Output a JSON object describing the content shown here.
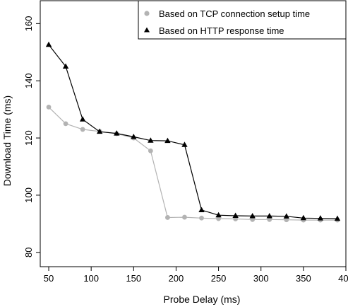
{
  "chart_data": {
    "type": "line",
    "title": "",
    "xlabel": "Probe Delay (ms)",
    "ylabel": "Download Time (ms)",
    "xlim": [
      40,
      400
    ],
    "ylim": [
      75,
      168
    ],
    "xticks": [
      "50",
      "100",
      "150",
      "200",
      "250",
      "300",
      "350",
      "400"
    ],
    "yticks": [
      "80",
      "100",
      "120",
      "140",
      "160"
    ],
    "legend_position": "top-right",
    "grid": false,
    "x": [
      50,
      70,
      90,
      110,
      130,
      150,
      170,
      190,
      210,
      230,
      250,
      270,
      290,
      310,
      330,
      350,
      370,
      390
    ],
    "series": [
      {
        "name": "Based on TCP connection setup time",
        "marker": "circle",
        "color": "#b3b3b3",
        "values": [
          130.8,
          125.0,
          123.0,
          122.3,
          121.5,
          120.0,
          115.5,
          92.2,
          92.3,
          92.0,
          91.8,
          91.7,
          91.5,
          91.5,
          91.4,
          91.3,
          91.3,
          91.3
        ]
      },
      {
        "name": "Based on HTTP response time",
        "marker": "triangle",
        "color": "#000000",
        "values": [
          152.6,
          145.0,
          126.5,
          122.2,
          121.6,
          120.4,
          119.1,
          119.0,
          117.6,
          94.8,
          93.0,
          92.8,
          92.7,
          92.7,
          92.6,
          92.0,
          91.9,
          91.8
        ]
      }
    ]
  }
}
